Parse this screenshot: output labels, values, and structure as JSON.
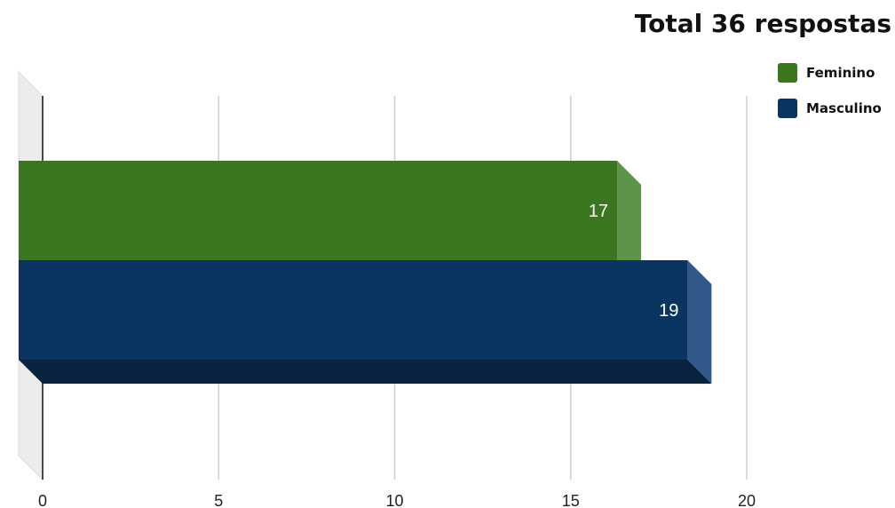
{
  "chart_data": {
    "type": "bar",
    "orientation": "horizontal",
    "style": "3d",
    "title": "Total 36 respostas",
    "series": [
      {
        "name": "Feminino",
        "value": 17,
        "color": "#3a7520",
        "side_color": "#5e9449"
      },
      {
        "name": "Masculino",
        "value": 19,
        "color": "#0a3561",
        "side_color": "#30598a"
      }
    ],
    "x_ticks": [
      0,
      5,
      10,
      15,
      20
    ],
    "xlim": [
      0,
      20
    ],
    "grid": true,
    "legend_position": "top-right",
    "data_labels": true
  }
}
